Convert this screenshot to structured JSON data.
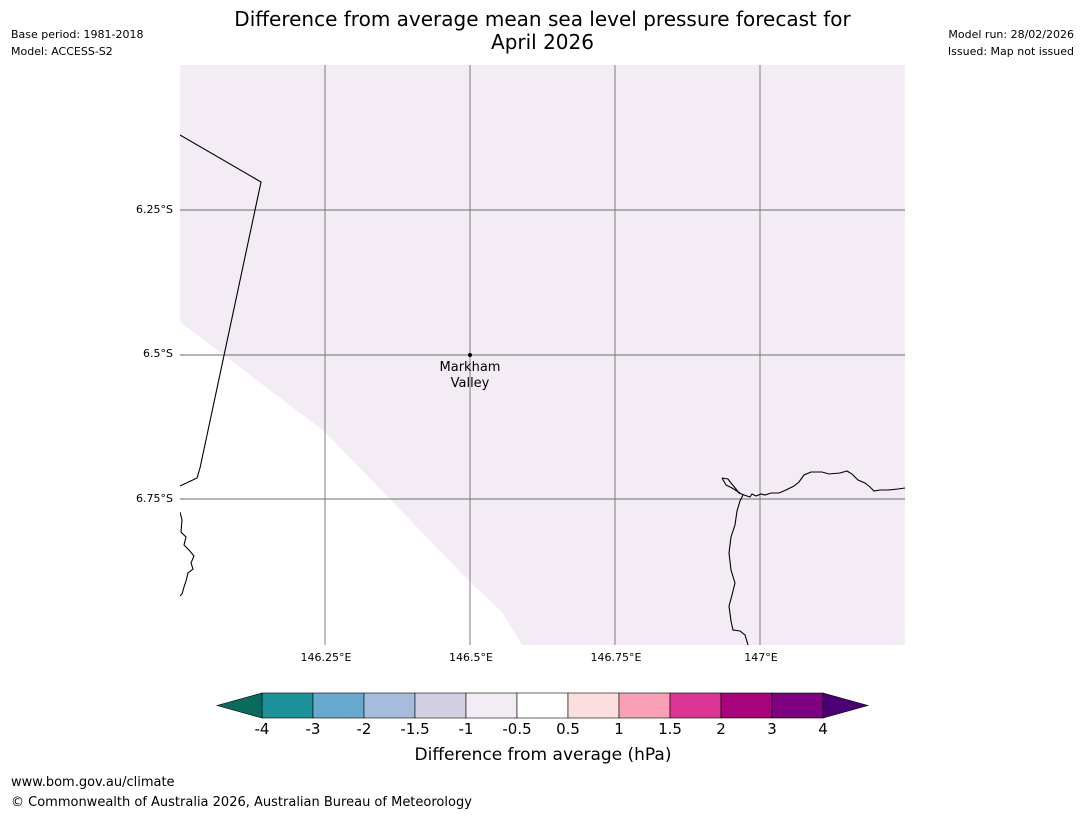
{
  "header": {
    "base_period": "Base period: 1981-2018",
    "model": "Model: ACCESS-S2",
    "model_run": "Model run: 28/02/2026",
    "issued": "Issued: Map not issued",
    "title_line1": "Difference from average mean sea level pressure forecast for",
    "title_line2": "April 2026"
  },
  "map": {
    "latitude_labels": [
      "6.25°S",
      "6.5°S",
      "6.75°S"
    ],
    "longitude_labels": [
      "146.25°E",
      "146.5°E",
      "146.75°E",
      "147°E"
    ],
    "place": {
      "name_line1": "Markham",
      "name_line2": "Valley"
    },
    "fill_color": "#f3ecf5",
    "fill_category": "-0.5 to -1"
  },
  "legend": {
    "title": "Difference from average (hPa)",
    "ticks": [
      "-4",
      "-3",
      "-2",
      "-1.5",
      "-1",
      "-0.5",
      "0.5",
      "1",
      "1.5",
      "2",
      "3",
      "4"
    ],
    "colors": {
      "below_min": "#096a5e",
      "bins": [
        "#1b9097",
        "#68a9d0",
        "#a6bcdc",
        "#d3d0e4",
        "#f3ecf5",
        "#ffffff",
        "#fddede",
        "#f99fb6",
        "#dc3596",
        "#a9037c",
        "#7e0280"
      ],
      "above_max": "#4c0074"
    }
  },
  "footer": {
    "url": "www.bom.gov.au/climate",
    "copyright": "© Commonwealth of Australia 2026, Australian Bureau of Meteorology"
  }
}
